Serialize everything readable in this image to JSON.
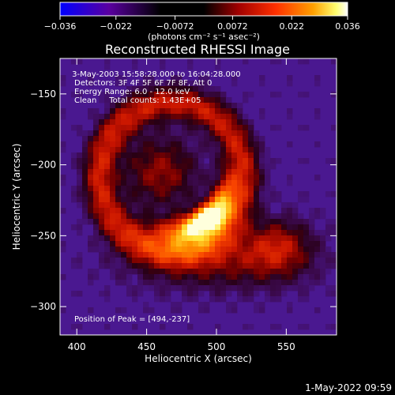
{
  "chart_data": {
    "type": "heatmap",
    "title": "Reconstructed RHESSI Image",
    "xlabel": "Heliocentric X (arcsec)",
    "ylabel": "Heliocentric Y (arcsec)",
    "xlim": [
      388,
      586
    ],
    "ylim": [
      -320,
      -125
    ],
    "x_ticks": [
      400,
      450,
      500,
      550
    ],
    "x_tick_labels": [
      "400",
      "450",
      "500",
      "550"
    ],
    "y_ticks": [
      -150,
      -200,
      -250,
      -300
    ],
    "y_tick_labels": [
      "−150",
      "−200",
      "−250",
      "−300"
    ],
    "colorbar": {
      "range": [
        -0.036,
        0.036
      ],
      "ticks": [
        -0.036,
        -0.022,
        -0.0072,
        0.0072,
        0.022,
        0.036
      ],
      "tick_labels": [
        "−0.036",
        "−0.022",
        "−0.0072",
        "0.0072",
        "0.022",
        "0.036"
      ],
      "unit_label": "(photons cm⁻² s⁻¹ asec⁻²)",
      "colors": [
        "#0000ff",
        "#5a008a",
        "#000000",
        "#8a0000",
        "#ff3a00",
        "#ff9a00",
        "#ffff80",
        "#ffffff"
      ]
    },
    "annotations": [
      " 3-May-2003 15:58:28.000 to 16:04:28.000",
      "Detectors: 3F 4F 5F 6F 7F 8F, Att 0",
      "Energy Range: 6.0 - 12.0 keV",
      "Clean     Total counts: 1.43E+05"
    ],
    "peak_label": "Position of Peak = [494,-237]",
    "peak": [
      494,
      -237
    ],
    "grid": false,
    "legend": "none"
  },
  "footer": {
    "date_stamp": "1-May-2022 09:59"
  }
}
